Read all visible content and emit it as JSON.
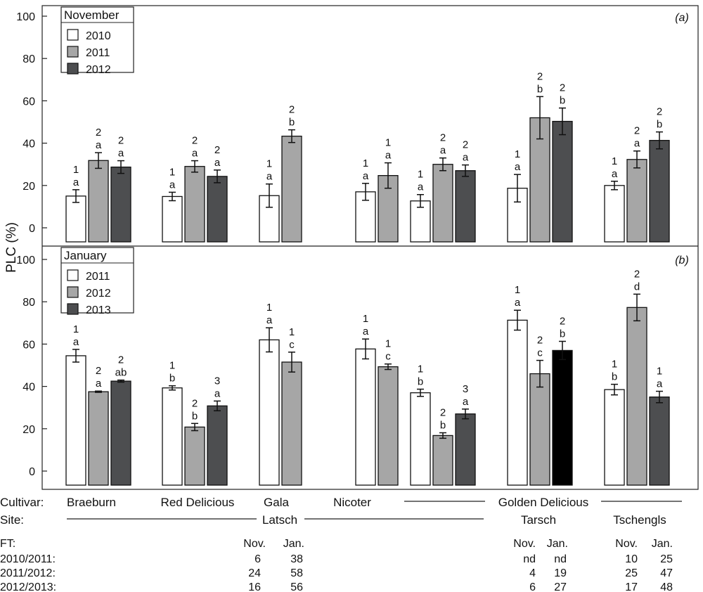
{
  "chart_data": [
    {
      "type": "bar",
      "panel_tag": "(a)",
      "legend_title": "November",
      "legend_position": "top-left",
      "ylabel": "PLC (%)",
      "ylim": [
        0,
        100
      ],
      "yticks": [
        0,
        20,
        40,
        60,
        80,
        100
      ],
      "grid": false,
      "categories": [
        "Braeburn",
        "Red Delicious",
        "Gala",
        "Nicoter",
        "Golden Delicious Latsch",
        "Golden Delicious Tarsch",
        "Golden Delicious Tschengls"
      ],
      "series": [
        {
          "name": "2010",
          "color": "#ffffff",
          "values": [
            15,
            14.8,
            15.2,
            17,
            12.7,
            18.7,
            20
          ],
          "errors": [
            3,
            2,
            5.5,
            4,
            3,
            6.5,
            2
          ],
          "labels": [
            [
              "1",
              "a"
            ],
            [
              "1",
              "a"
            ],
            [
              "1",
              "a"
            ],
            [
              "1",
              "a"
            ],
            [
              "1",
              "a"
            ],
            [
              "1",
              "a"
            ],
            [
              "1",
              "a"
            ]
          ]
        },
        {
          "name": "2011",
          "color": "#a6a6a6",
          "values": [
            31.8,
            29,
            43.3,
            24.7,
            30,
            52,
            32.3
          ],
          "errors": [
            3.7,
            2.7,
            3,
            6,
            3,
            10,
            4
          ],
          "labels": [
            [
              "2",
              "a"
            ],
            [
              "2",
              "a"
            ],
            [
              "2",
              "b"
            ],
            [
              "1",
              "a"
            ],
            [
              "2",
              "a"
            ],
            [
              "2",
              "b"
            ],
            [
              "2",
              "a"
            ]
          ]
        },
        {
          "name": "2012",
          "color": "#4d4e50",
          "values": [
            28.7,
            24.3,
            null,
            null,
            27,
            50.3,
            41.3
          ],
          "errors": [
            3,
            3,
            null,
            null,
            2.7,
            6.3,
            4
          ],
          "labels": [
            [
              "2",
              "a"
            ],
            [
              "2",
              "a"
            ],
            null,
            null,
            [
              "2",
              "a"
            ],
            [
              "2",
              "b"
            ],
            [
              "2",
              "b"
            ]
          ]
        }
      ]
    },
    {
      "type": "bar",
      "panel_tag": "(b)",
      "legend_title": "January",
      "legend_position": "top-left",
      "ylabel": "PLC (%)",
      "ylim": [
        0,
        100
      ],
      "yticks": [
        0,
        20,
        40,
        60,
        80,
        100
      ],
      "grid": false,
      "categories": [
        "Braeburn",
        "Red Delicious",
        "Gala",
        "Nicoter",
        "Golden Delicious Latsch",
        "Golden Delicious Tarsch",
        "Golden Delicious Tschengls"
      ],
      "series": [
        {
          "name": "2011",
          "color": "#ffffff",
          "values": [
            54.5,
            39.3,
            62,
            57.7,
            37,
            71.3,
            38.5
          ],
          "errors": [
            3,
            1,
            5.7,
            4.7,
            1.7,
            4.7,
            2.5
          ],
          "labels": [
            [
              "1",
              "a"
            ],
            [
              "1",
              "b"
            ],
            [
              "1",
              "a"
            ],
            [
              "1",
              "a"
            ],
            [
              "1",
              "b"
            ],
            [
              "1",
              "a"
            ],
            [
              "1",
              "b"
            ]
          ]
        },
        {
          "name": "2012",
          "color": "#a6a6a6",
          "values": [
            37.5,
            20.8,
            51.5,
            49.3,
            16.8,
            46,
            77.3
          ],
          "errors": [
            0.3,
            1.7,
            4.7,
            1.3,
            1.3,
            6.3,
            6.3
          ],
          "labels": [
            [
              "2",
              "a"
            ],
            [
              "2",
              "b"
            ],
            [
              "1",
              "c"
            ],
            [
              "1",
              "c"
            ],
            [
              "2",
              "b"
            ],
            [
              "2",
              "c"
            ],
            [
              "2",
              "d"
            ]
          ]
        },
        {
          "name": "2013",
          "color": "#4d4e50",
          "values": [
            42.5,
            30.8,
            null,
            null,
            27,
            57,
            35
          ],
          "errors": [
            0.5,
            2.3,
            null,
            null,
            2.3,
            4.3,
            2.7
          ],
          "labels": [
            [
              "2",
              "ab"
            ],
            [
              "3",
              "a"
            ],
            null,
            null,
            [
              "3",
              "a"
            ],
            [
              "2",
              "b"
            ],
            [
              "1",
              "a"
            ]
          ],
          "point_colors": [
            null,
            null,
            null,
            null,
            null,
            "#000000",
            null
          ]
        }
      ]
    }
  ],
  "x_annotation": {
    "cultivar_label": "Cultivar:",
    "site_label": "Site:",
    "cultivars": [
      "Braeburn",
      "Red Delicious",
      "Gala",
      "Nicoter",
      "Golden Delicious"
    ],
    "sites": [
      "Latsch",
      "Tarsch",
      "Tschengls"
    ]
  },
  "ft_table": {
    "label": "FT:",
    "col_nov": "Nov.",
    "col_jan": "Jan.",
    "rows": [
      {
        "period": "2010/2011:",
        "latsch": [
          "6",
          "38"
        ],
        "tarsch": [
          "nd",
          "nd"
        ],
        "tschengls": [
          "10",
          "25"
        ]
      },
      {
        "period": "2011/2012:",
        "latsch": [
          "24",
          "58"
        ],
        "tarsch": [
          "4",
          "19"
        ],
        "tschengls": [
          "25",
          "47"
        ]
      },
      {
        "period": "2012/2013:",
        "latsch": [
          "16",
          "56"
        ],
        "tarsch": [
          "6",
          "27"
        ],
        "tschengls": [
          "17",
          "48"
        ]
      }
    ]
  }
}
